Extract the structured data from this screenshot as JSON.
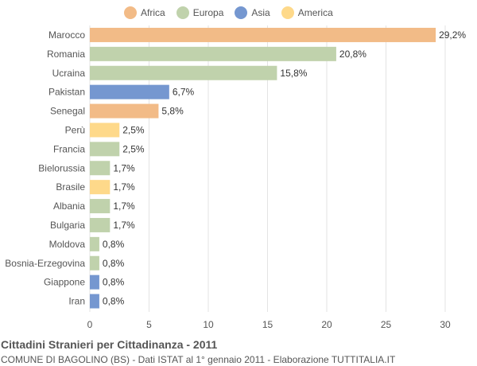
{
  "colors": {
    "Africa": "#f2bb87",
    "Europa": "#c0d2ac",
    "Asia": "#7597d0",
    "America": "#fed98a"
  },
  "legend": [
    {
      "label": "Africa",
      "color": "#f2bb87"
    },
    {
      "label": "Europa",
      "color": "#c0d2ac"
    },
    {
      "label": "Asia",
      "color": "#7597d0"
    },
    {
      "label": "America",
      "color": "#fed98a"
    }
  ],
  "chart_data": {
    "type": "bar",
    "orientation": "horizontal",
    "categories": [
      "Marocco",
      "Romania",
      "Ucraina",
      "Pakistan",
      "Senegal",
      "Perù",
      "Francia",
      "Bielorussia",
      "Brasile",
      "Albania",
      "Bulgaria",
      "Moldova",
      "Bosnia-Erzegovina",
      "Giappone",
      "Iran"
    ],
    "values": [
      29.2,
      20.8,
      15.8,
      6.7,
      5.8,
      2.5,
      2.5,
      1.7,
      1.7,
      1.7,
      1.7,
      0.8,
      0.8,
      0.8,
      0.8
    ],
    "value_labels": [
      "29,2%",
      "20,8%",
      "15,8%",
      "6,7%",
      "5,8%",
      "2,5%",
      "2,5%",
      "1,7%",
      "1,7%",
      "1,7%",
      "1,7%",
      "0,8%",
      "0,8%",
      "0,8%",
      "0,8%"
    ],
    "groups": [
      "Africa",
      "Europa",
      "Europa",
      "Asia",
      "Africa",
      "America",
      "Europa",
      "Europa",
      "America",
      "Europa",
      "Europa",
      "Europa",
      "Europa",
      "Asia",
      "Asia"
    ],
    "xlim": [
      0,
      30
    ],
    "xticks": [
      0,
      5,
      10,
      15,
      20,
      25,
      30
    ],
    "grid": true,
    "legend_position": "top"
  },
  "caption": {
    "title": "Cittadini Stranieri per Cittadinanza - 2011",
    "subtitle": "COMUNE DI BAGOLINO (BS) - Dati ISTAT al 1° gennaio 2011 - Elaborazione TUTTITALIA.IT"
  }
}
